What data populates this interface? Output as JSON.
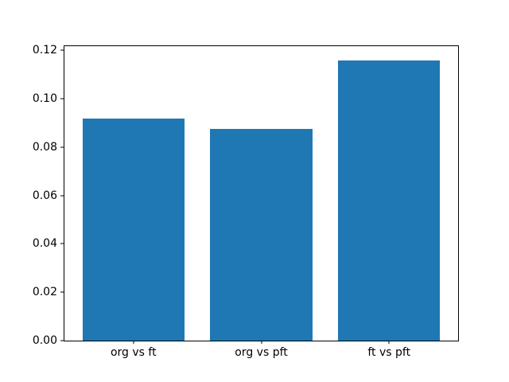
{
  "chart_data": {
    "type": "bar",
    "title": "",
    "xlabel": "",
    "ylabel": "",
    "categories": [
      "org vs ft",
      "org vs pft",
      "ft vs pft"
    ],
    "values": [
      0.0917,
      0.0875,
      0.116
    ],
    "ylim": [
      0,
      0.1218
    ],
    "yticks": [
      0.0,
      0.02,
      0.04,
      0.06,
      0.08,
      0.1,
      0.12
    ],
    "ytick_decimals": 2,
    "bar_width_fraction": 0.8,
    "x_margin_fraction": 0.05,
    "bar_color": "#1f77b4",
    "axis_color": "#000000",
    "text_color": "#000000",
    "background_color": "#ffffff",
    "grid": false,
    "legend": null
  }
}
